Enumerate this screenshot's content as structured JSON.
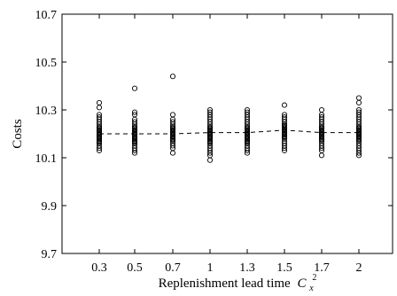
{
  "chart_data": {
    "type": "scatter",
    "title": "",
    "xlabel": "Replenishment lead time",
    "xlabel_symbol": "C",
    "xlabel_subscript": "x",
    "xlabel_superscript": "2",
    "ylabel": "Costs",
    "categories": [
      "0.3",
      "0.5",
      "0.7",
      "1",
      "1.3",
      "1.5",
      "1.7",
      "2"
    ],
    "ylim": [
      9.7,
      10.7
    ],
    "yticks": [
      "9.7",
      "9.9",
      "10.1",
      "10.3",
      "10.5",
      "10.7"
    ],
    "grid": false,
    "series": [
      {
        "kind": "points",
        "marker": "open-circle",
        "points": [
          {
            "category": "0.3",
            "values": [
              10.33,
              10.31,
              10.28,
              10.27,
              10.26,
              10.25,
              10.24,
              10.23,
              10.225,
              10.22,
              10.215,
              10.21,
              10.205,
              10.2,
              10.195,
              10.19,
              10.185,
              10.18,
              10.175,
              10.17,
              10.165,
              10.16,
              10.15,
              10.14,
              10.13
            ]
          },
          {
            "category": "0.5",
            "values": [
              10.39,
              10.29,
              10.28,
              10.26,
              10.25,
              10.24,
              10.23,
              10.225,
              10.22,
              10.215,
              10.21,
              10.205,
              10.2,
              10.195,
              10.19,
              10.185,
              10.18,
              10.175,
              10.17,
              10.165,
              10.16,
              10.15,
              10.14,
              10.13,
              10.12
            ]
          },
          {
            "category": "0.7",
            "values": [
              10.44,
              10.28,
              10.26,
              10.25,
              10.24,
              10.23,
              10.225,
              10.22,
              10.215,
              10.21,
              10.205,
              10.2,
              10.195,
              10.19,
              10.185,
              10.18,
              10.175,
              10.17,
              10.16,
              10.15,
              10.14,
              10.12
            ]
          },
          {
            "category": "1",
            "values": [
              10.3,
              10.29,
              10.28,
              10.27,
              10.26,
              10.25,
              10.24,
              10.23,
              10.225,
              10.22,
              10.215,
              10.21,
              10.205,
              10.2,
              10.195,
              10.19,
              10.185,
              10.18,
              10.175,
              10.17,
              10.165,
              10.16,
              10.15,
              10.14,
              10.13,
              10.12,
              10.11,
              10.09
            ]
          },
          {
            "category": "1.3",
            "values": [
              10.3,
              10.29,
              10.28,
              10.27,
              10.26,
              10.25,
              10.24,
              10.23,
              10.225,
              10.22,
              10.215,
              10.21,
              10.205,
              10.2,
              10.195,
              10.19,
              10.185,
              10.18,
              10.175,
              10.17,
              10.165,
              10.16,
              10.15,
              10.14,
              10.13,
              10.12
            ]
          },
          {
            "category": "1.5",
            "values": [
              10.32,
              10.28,
              10.27,
              10.26,
              10.25,
              10.24,
              10.235,
              10.23,
              10.225,
              10.22,
              10.215,
              10.21,
              10.205,
              10.2,
              10.195,
              10.19,
              10.185,
              10.18,
              10.17,
              10.16,
              10.15,
              10.14,
              10.13
            ]
          },
          {
            "category": "1.7",
            "values": [
              10.3,
              10.28,
              10.27,
              10.26,
              10.25,
              10.24,
              10.23,
              10.225,
              10.22,
              10.215,
              10.21,
              10.205,
              10.2,
              10.195,
              10.19,
              10.185,
              10.18,
              10.175,
              10.17,
              10.16,
              10.15,
              10.14,
              10.13,
              10.11
            ]
          },
          {
            "category": "2",
            "values": [
              10.35,
              10.33,
              10.3,
              10.29,
              10.28,
              10.27,
              10.26,
              10.25,
              10.24,
              10.23,
              10.225,
              10.22,
              10.215,
              10.21,
              10.205,
              10.2,
              10.195,
              10.19,
              10.185,
              10.18,
              10.175,
              10.17,
              10.16,
              10.15,
              10.14,
              10.13,
              10.12,
              10.11
            ]
          }
        ]
      },
      {
        "kind": "mean-line",
        "style": "dashed",
        "values": [
          10.2,
          10.2,
          10.2,
          10.205,
          10.205,
          10.215,
          10.205,
          10.205
        ]
      }
    ]
  }
}
